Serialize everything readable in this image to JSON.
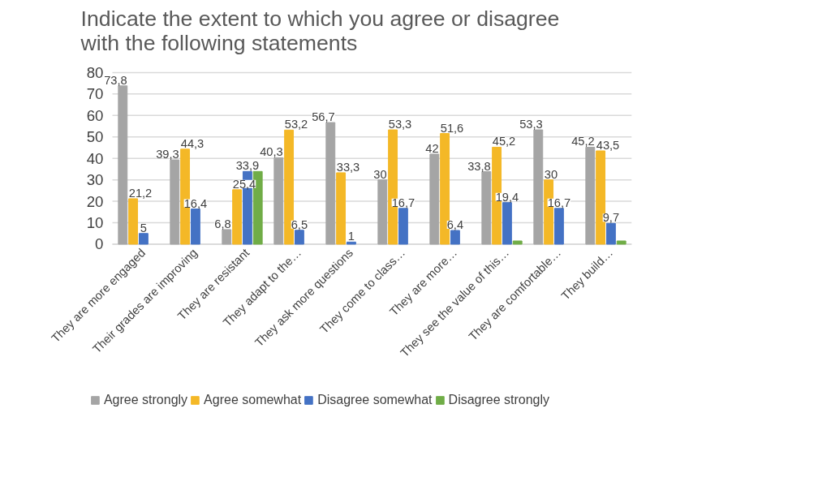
{
  "chart_data": {
    "type": "bar",
    "title": "Indicate the extent to which you agree or disagree with the following statements",
    "categories": [
      "They are more engaged",
      "Their grades are improving",
      "They are resistant",
      "They adapt to the…",
      "They ask more questions",
      "They come to class…",
      "They are more…",
      "They see the value of this…",
      "They are comfortable…",
      "They build…"
    ],
    "series": [
      {
        "name": "Agree strongly",
        "color": "#a5a5a5",
        "values": [
          73.8,
          39.3,
          6.8,
          40.3,
          56.7,
          30,
          42,
          33.8,
          53.3,
          45.2
        ],
        "value_labels": [
          "73,8",
          "39,3",
          "6,8",
          "40,3",
          "56,7",
          "30",
          "42",
          "33,8",
          "53,3",
          "45,2"
        ]
      },
      {
        "name": "Agree somewhat",
        "color": "#f4b827",
        "values": [
          21.2,
          44.3,
          25.4,
          53.2,
          33.3,
          53.3,
          51.6,
          45.2,
          30,
          43.5
        ],
        "value_labels": [
          "21,2",
          "44,3",
          "25,4",
          "53,2",
          "33,3",
          "53,3",
          "51,6",
          "45,2",
          "30",
          "43,5"
        ]
      },
      {
        "name": "Disagree somewhat",
        "color": "#4472c4",
        "values": [
          5,
          16.4,
          33.9,
          6.5,
          1,
          16.7,
          6.4,
          19.4,
          16.7,
          9.7
        ],
        "value_labels": [
          "5",
          "16,4",
          "33,9",
          "6,5",
          "1",
          "16,7",
          "6,4",
          "19,4",
          "16,7",
          "9,7"
        ]
      },
      {
        "name": "Disagree strongly",
        "color": "#70ad47",
        "values": [
          null,
          null,
          33.9,
          null,
          null,
          null,
          null,
          1.5,
          null,
          1.5
        ],
        "value_labels": [
          null,
          null,
          null,
          null,
          null,
          null,
          null,
          null,
          null,
          null
        ]
      }
    ],
    "ylim": [
      0,
      80
    ],
    "yticks": [
      0,
      10,
      20,
      30,
      40,
      50,
      60,
      70,
      80
    ],
    "grid": "y",
    "legend": "bottom"
  }
}
